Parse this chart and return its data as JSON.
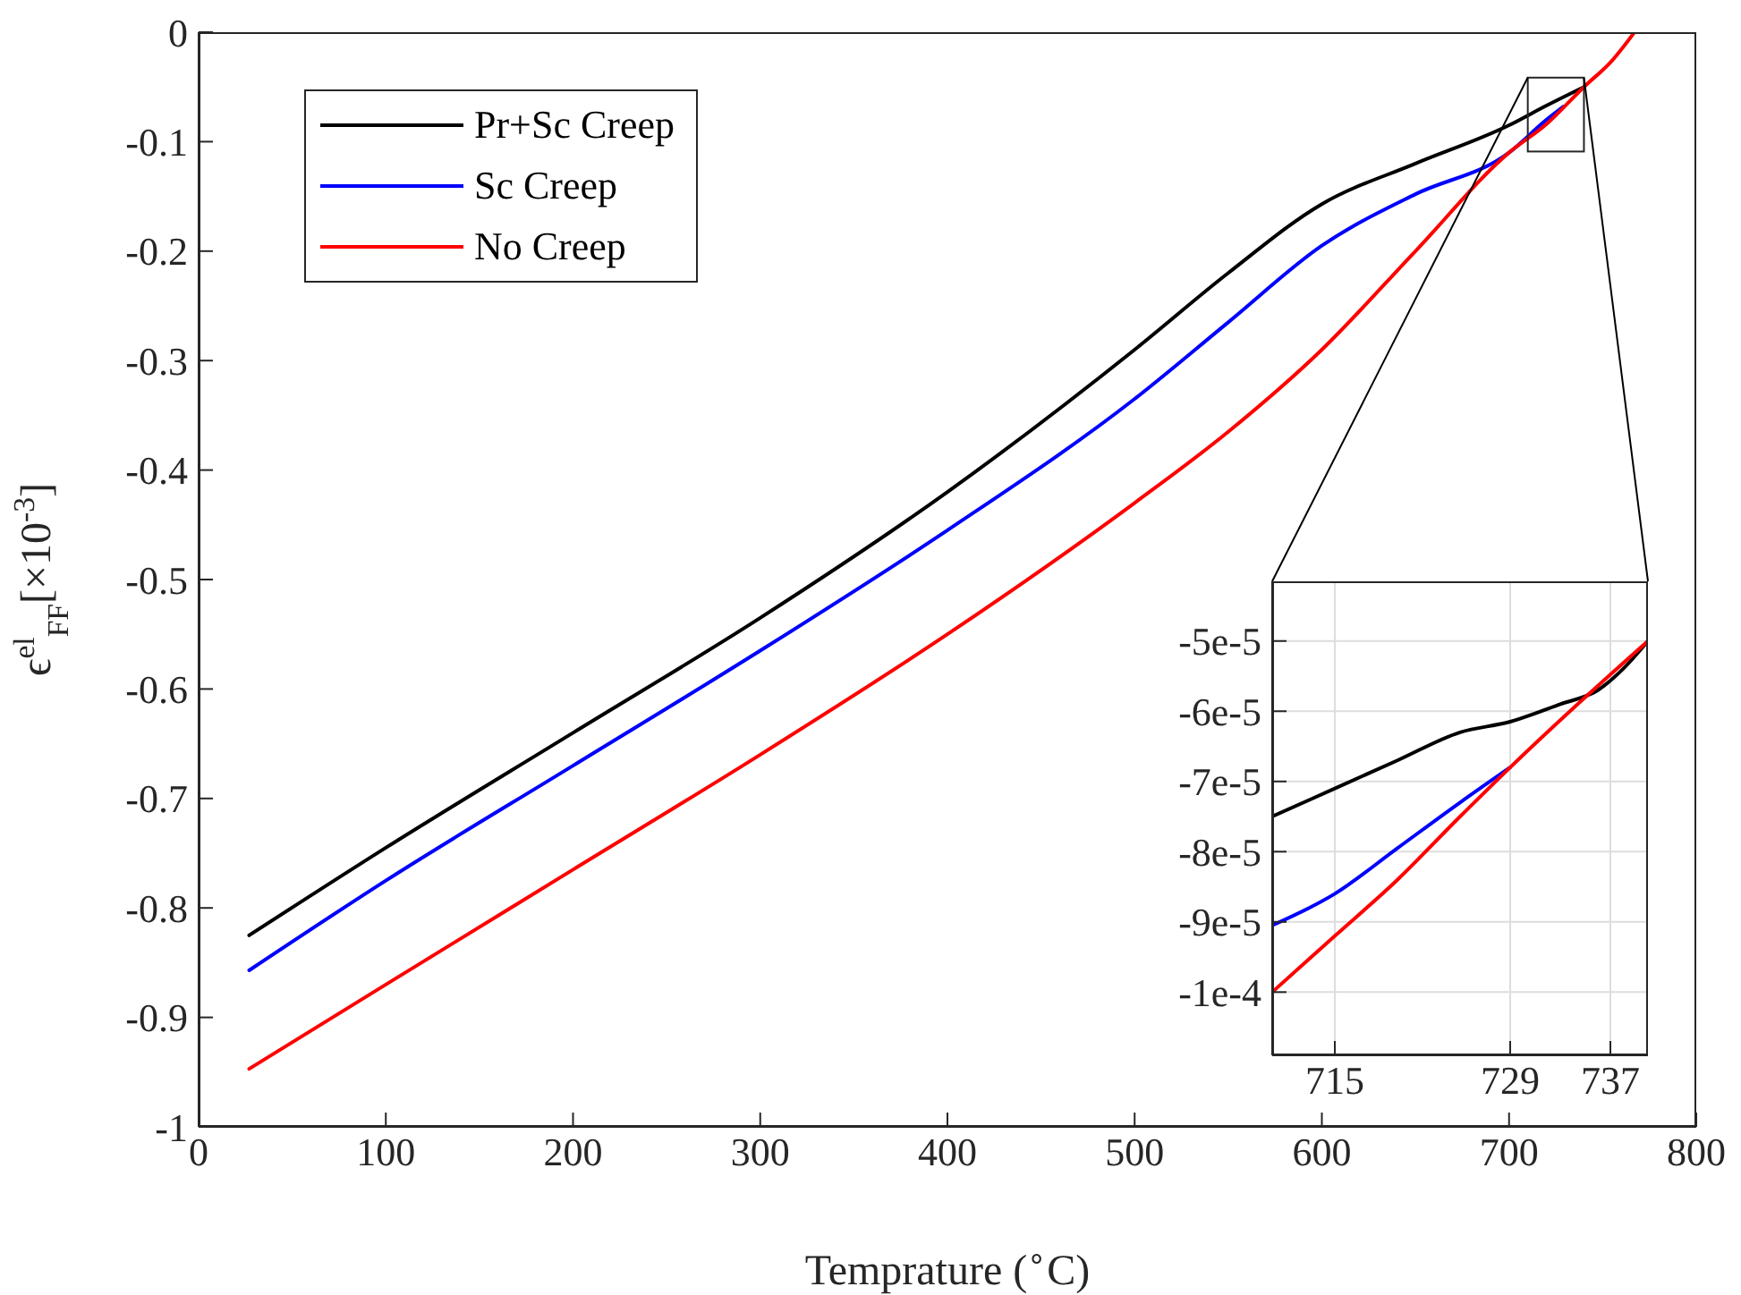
{
  "chart_data": [
    {
      "type": "line",
      "xlabel": "Temprature ($^{∘}$C)",
      "ylabel": "ϵ$^{el}$$_{FF}$[×10$^{-3}$]",
      "xlim": [
        0,
        800
      ],
      "xticks": [
        0,
        100,
        200,
        300,
        400,
        500,
        600,
        700,
        800
      ],
      "ylim": [
        -1,
        0
      ],
      "yticks": [
        -1,
        -0.9,
        -0.8,
        -0.7,
        -0.6,
        -0.5,
        -0.4,
        -0.3,
        -0.2,
        -0.1,
        0
      ],
      "legend": "top left",
      "grid": false,
      "line_style": "solid",
      "series": [
        {
          "name": "Pr+Sc Creep",
          "color": "#000000",
          "x": [
            27,
            100,
            200,
            300,
            400,
            500,
            550,
            600,
            650,
            700,
            720,
            740
          ],
          "values": [
            -0.825,
            -0.745,
            -0.64,
            -0.535,
            -0.42,
            -0.29,
            -0.22,
            -0.157,
            -0.12,
            -0.085,
            -0.067,
            -0.05
          ]
        },
        {
          "name": "Sc Creep",
          "color": "#0000ff",
          "x": [
            27,
            100,
            200,
            300,
            400,
            500,
            550,
            600,
            650,
            700,
            720,
            729
          ],
          "values": [
            -0.857,
            -0.775,
            -0.67,
            -0.565,
            -0.455,
            -0.335,
            -0.265,
            -0.195,
            -0.148,
            -0.11,
            -0.08,
            -0.068
          ]
        },
        {
          "name": "No Creep",
          "color": "#ff0000",
          "x": [
            27,
            100,
            200,
            300,
            400,
            500,
            550,
            600,
            650,
            700,
            720,
            740,
            755,
            767
          ],
          "values": [
            -0.947,
            -0.87,
            -0.765,
            -0.66,
            -0.55,
            -0.43,
            -0.365,
            -0.29,
            -0.2,
            -0.11,
            -0.084,
            -0.05,
            -0.026,
            0
          ]
        }
      ]
    },
    {
      "type": "line",
      "xlim": [
        710,
        740
      ],
      "xticks": [
        715,
        729,
        737
      ],
      "ylim": [
        -0.000109,
        -4.15e-05
      ],
      "yticks": [
        {
          "value": -0.0001,
          "label": "-1e-4"
        },
        {
          "value": -9e-05,
          "label": "-9e-5"
        },
        {
          "value": -8e-05,
          "label": "-8e-5"
        },
        {
          "value": -7e-05,
          "label": "-7e-5"
        },
        {
          "value": -6e-05,
          "label": "-6e-5"
        },
        {
          "value": -5e-05,
          "label": "-5e-5"
        }
      ],
      "grid": true,
      "line_style": "solid",
      "series": [
        {
          "color": "#000000",
          "x": [
            710,
            715,
            720,
            725,
            729,
            733,
            736,
            738,
            740
          ],
          "values": [
            -7.5e-05,
            -7.1e-05,
            -6.7e-05,
            -6.3e-05,
            -6.15e-05,
            -5.9e-05,
            -5.7e-05,
            -5.4e-05,
            -5e-05
          ]
        },
        {
          "color": "#0000ff",
          "x": [
            710,
            715,
            720,
            725,
            729
          ],
          "values": [
            -9.05e-05,
            -8.6e-05,
            -7.95e-05,
            -7.3e-05,
            -6.8e-05
          ]
        },
        {
          "color": "#ff0000",
          "x": [
            710,
            715,
            720,
            725,
            729,
            735,
            740
          ],
          "values": [
            -0.0001,
            -9.2e-05,
            -8.4e-05,
            -7.5e-05,
            -6.8e-05,
            -5.8e-05,
            -5e-05
          ]
        }
      ]
    }
  ]
}
